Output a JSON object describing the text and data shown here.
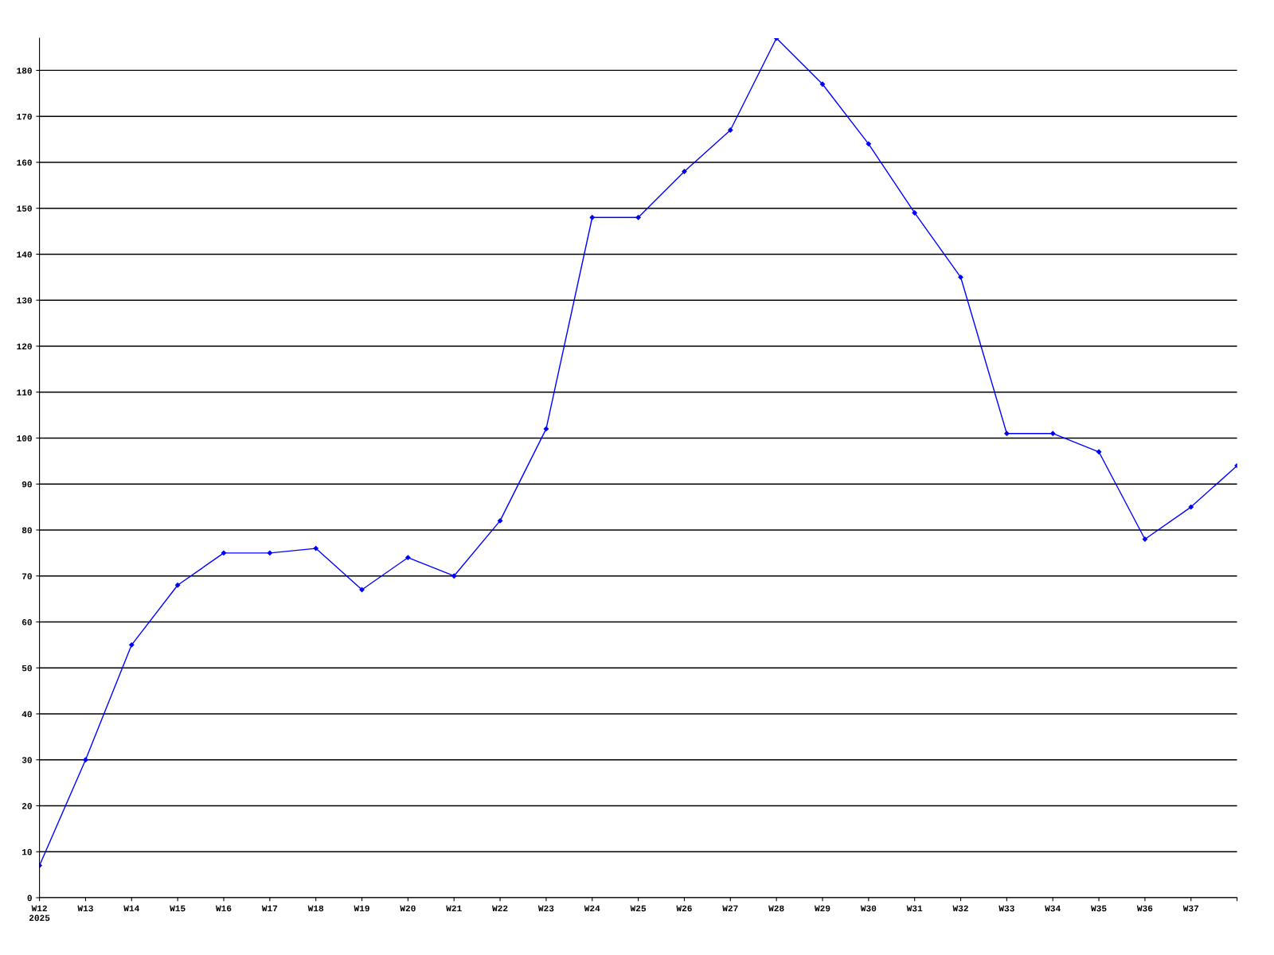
{
  "chart_data": {
    "type": "line",
    "categories": [
      "W12\n2025",
      "W13",
      "W14",
      "W15",
      "W16",
      "W17",
      "W18",
      "W19",
      "W20",
      "W21",
      "W22",
      "W23",
      "W24",
      "W25",
      "W26",
      "W27",
      "W28",
      "W29",
      "W30",
      "W31",
      "W32",
      "W33",
      "W34",
      "W35",
      "W36",
      "W37",
      null
    ],
    "series": [
      {
        "color": "#0000ff",
        "values": [
          7,
          30,
          55,
          68,
          75,
          75,
          76,
          67,
          74,
          70,
          82,
          102,
          148,
          148,
          158,
          167,
          187,
          177,
          164,
          149,
          135,
          101,
          101,
          97,
          78,
          85,
          94
        ]
      }
    ],
    "ylim": [
      0,
      187
    ],
    "yticks": [
      0,
      10,
      20,
      30,
      40,
      50,
      60,
      70,
      80,
      90,
      100,
      110,
      120,
      130,
      140,
      150,
      160,
      170,
      180
    ],
    "grid": "y",
    "marker": "diamond",
    "line_style": "solid",
    "legend": false
  }
}
